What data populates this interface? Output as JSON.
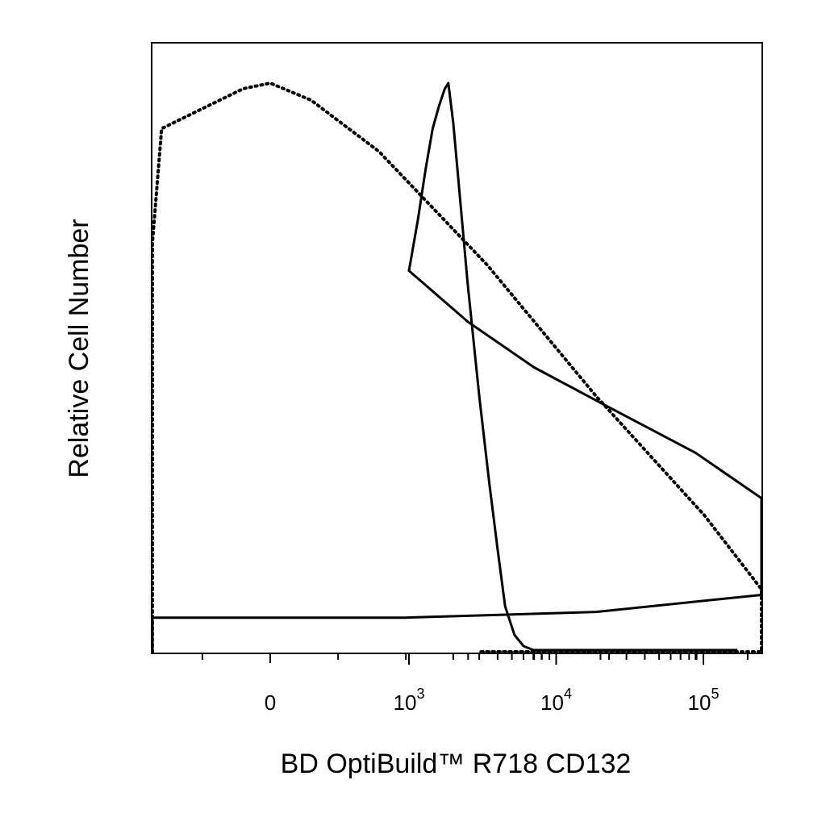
{
  "chart_data": {
    "type": "line",
    "title": "",
    "xlabel": "BD OptiBuild™ R718 CD132",
    "ylabel": "Relative Cell Number",
    "x_scale": "biexponential",
    "xlim": [
      -700,
      170000
    ],
    "ylim": [
      0,
      1
    ],
    "grid": false,
    "legend": "none",
    "x_tick_labels": [
      {
        "value": 0,
        "base": "0",
        "exp": ""
      },
      {
        "value": 1000,
        "base": "10",
        "exp": "3"
      },
      {
        "value": 10000,
        "base": "10",
        "exp": "4"
      },
      {
        "value": 100000,
        "base": "10",
        "exp": "5"
      }
    ],
    "series": [
      {
        "style": "dotted",
        "color": "#000000",
        "x": [
          -700,
          -280,
          -240,
          -180,
          -120,
          -80,
          -40,
          -10,
          0,
          15,
          40,
          80,
          120,
          160,
          200,
          240,
          300,
          400,
          700,
          3000,
          170000
        ],
        "y": [
          0,
          0,
          0.03,
          0.2,
          0.48,
          0.72,
          0.92,
          0.99,
          1.0,
          0.97,
          0.88,
          0.68,
          0.45,
          0.24,
          0.11,
          0.04,
          0.005,
          0,
          0,
          0,
          0
        ]
      },
      {
        "style": "solid",
        "color": "#000000",
        "x": [
          -700,
          -600,
          -550,
          -500,
          -350,
          -200,
          -50,
          50,
          120,
          200,
          300,
          350,
          420,
          500,
          600,
          700,
          800,
          900,
          1000,
          1150,
          1300,
          1450,
          1600,
          1750,
          1850,
          2000,
          2200,
          2500,
          3000,
          3500,
          4000,
          4500,
          5200,
          6000,
          7000,
          10000,
          50000,
          170000
        ],
        "y": [
          0.005,
          0.005,
          0.01,
          0.02,
          0.03,
          0.04,
          0.06,
          0.06,
          0.07,
          0.1,
          0.15,
          0.18,
          0.22,
          0.27,
          0.35,
          0.43,
          0.5,
          0.58,
          0.67,
          0.76,
          0.85,
          0.92,
          0.96,
          0.99,
          1.0,
          0.93,
          0.81,
          0.65,
          0.45,
          0.3,
          0.18,
          0.08,
          0.03,
          0.01,
          0.003,
          0.003,
          0.003,
          0.003
        ]
      }
    ]
  }
}
